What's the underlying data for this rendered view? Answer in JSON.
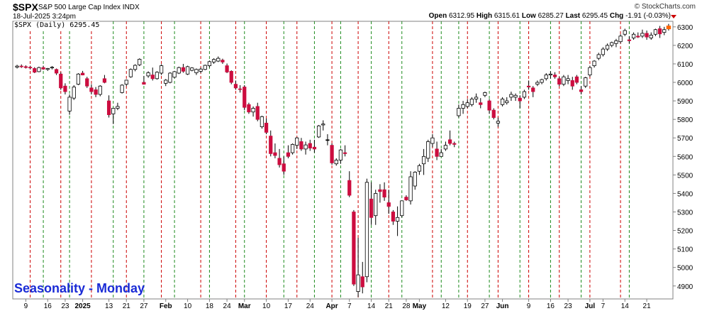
{
  "header": {
    "symbol": "$SPX",
    "description": "S&P 500 Large Cap Index  INDX",
    "date": "18-Jul-2025 3:24pm",
    "brand": "© StockCharts.com",
    "open_label": "Open",
    "open": "6312.95",
    "high_label": "High",
    "high": "6315.61",
    "low_label": "Low",
    "low": "6285.27",
    "last_label": "Last",
    "last": "6295.45",
    "chg_label": "Chg",
    "chg": "-1.91 (-0.03%)"
  },
  "series_label": "$SPX (Daily) 6295.45",
  "watermark": "Seasonality - Monday",
  "colors": {
    "up": "#ffffff",
    "down": "#cc0d3f",
    "flat": "#000000",
    "red_line": "#cc0000",
    "green_line": "#1c8a1c",
    "last_marker": "#ff6600"
  },
  "chart_data": {
    "type": "candlestick",
    "ylim": [
      4830,
      6330
    ],
    "y_ticks": [
      4900,
      5000,
      5100,
      5200,
      5300,
      5400,
      5500,
      5600,
      5700,
      5800,
      5900,
      6000,
      6100,
      6200,
      6300
    ],
    "x_ticks": [
      {
        "i": 2,
        "label": "9"
      },
      {
        "i": 7,
        "label": "16"
      },
      {
        "i": 11,
        "label": "23"
      },
      {
        "i": 15,
        "label": "2025",
        "bold": true
      },
      {
        "i": 21,
        "label": "13"
      },
      {
        "i": 25,
        "label": "21"
      },
      {
        "i": 29,
        "label": "27"
      },
      {
        "i": 34,
        "label": "Feb",
        "bold": true
      },
      {
        "i": 39,
        "label": "10"
      },
      {
        "i": 44,
        "label": "18"
      },
      {
        "i": 48,
        "label": "24"
      },
      {
        "i": 52,
        "label": "Mar",
        "bold": true
      },
      {
        "i": 57,
        "label": "10"
      },
      {
        "i": 62,
        "label": "17"
      },
      {
        "i": 67,
        "label": "24"
      },
      {
        "i": 72,
        "label": "Apr",
        "bold": true
      },
      {
        "i": 76,
        "label": "7"
      },
      {
        "i": 81,
        "label": "14"
      },
      {
        "i": 85,
        "label": "21"
      },
      {
        "i": 89,
        "label": "28"
      },
      {
        "i": 92,
        "label": "May",
        "bold": true
      },
      {
        "i": 98,
        "label": "12"
      },
      {
        "i": 103,
        "label": "19"
      },
      {
        "i": 107,
        "label": "27"
      },
      {
        "i": 111,
        "label": "Jun",
        "bold": true
      },
      {
        "i": 117,
        "label": "9"
      },
      {
        "i": 122,
        "label": "16"
      },
      {
        "i": 126,
        "label": "23"
      },
      {
        "i": 131,
        "label": "Jul",
        "bold": true
      },
      {
        "i": 134,
        "label": "7"
      },
      {
        "i": 139,
        "label": "14"
      },
      {
        "i": 144,
        "label": "21"
      }
    ],
    "red_lines": [
      3,
      10,
      17,
      25,
      33,
      42,
      50,
      57,
      64,
      72,
      78,
      85,
      95,
      103,
      110,
      117,
      124,
      131,
      138
    ],
    "green_lines": [
      6,
      12,
      22,
      29,
      36,
      44,
      52,
      61,
      68,
      74,
      81,
      88,
      97,
      101,
      108,
      115,
      122,
      129,
      140
    ],
    "candles": [
      [
        6082,
        6095,
        6075,
        6088
      ],
      [
        6088,
        6097,
        6078,
        6085
      ],
      [
        6085,
        6092,
        6075,
        6080
      ],
      [
        6082,
        6090,
        6070,
        6078
      ],
      [
        6075,
        6082,
        6050,
        6055
      ],
      [
        6058,
        6085,
        6055,
        6080
      ],
      [
        6080,
        6090,
        6068,
        6072
      ],
      [
        6070,
        6078,
        6062,
        6075
      ],
      [
        6078,
        6088,
        6070,
        6082
      ],
      [
        6070,
        6075,
        6040,
        6050
      ],
      [
        6045,
        6055,
        5960,
        5970
      ],
      [
        5980,
        5995,
        5935,
        5950
      ],
      [
        5845,
        5935,
        5825,
        5920
      ],
      [
        5915,
        5985,
        5905,
        5975
      ],
      [
        5990,
        6050,
        5985,
        6045
      ],
      [
        6050,
        6062,
        6038,
        6040
      ],
      [
        6020,
        6030,
        5970,
        5980
      ],
      [
        5970,
        5990,
        5935,
        5950
      ],
      [
        5960,
        5975,
        5920,
        5935
      ],
      [
        5935,
        5985,
        5925,
        5980
      ],
      [
        6020,
        6040,
        5995,
        6000
      ],
      [
        5900,
        5930,
        5810,
        5825
      ],
      [
        5830,
        5862,
        5775,
        5860
      ],
      [
        5860,
        5890,
        5850,
        5870
      ],
      [
        5945,
        5990,
        5940,
        5985
      ],
      [
        5990,
        6015,
        5980,
        6012
      ],
      [
        6030,
        6075,
        6025,
        6070
      ],
      [
        6070,
        6098,
        6060,
        6092
      ],
      [
        6095,
        6130,
        6088,
        6125
      ],
      [
        6000,
        6035,
        5988,
        5990
      ],
      [
        6035,
        6060,
        6025,
        6052
      ],
      [
        6040,
        6080,
        6010,
        6020
      ],
      [
        6020,
        6060,
        6015,
        6055
      ],
      [
        6050,
        6098,
        6040,
        6090
      ],
      [
        5995,
        6018,
        5980,
        6012
      ],
      [
        6000,
        6055,
        5995,
        6050
      ],
      [
        6028,
        6062,
        6022,
        6058
      ],
      [
        6050,
        6085,
        6045,
        6080
      ],
      [
        6080,
        6100,
        6052,
        6060
      ],
      [
        6045,
        6090,
        6040,
        6085
      ],
      [
        6065,
        6082,
        6060,
        6078
      ],
      [
        6052,
        6075,
        6040,
        6070
      ],
      [
        6060,
        6080,
        6050,
        6072
      ],
      [
        6070,
        6096,
        6066,
        6092
      ],
      [
        6090,
        6118,
        6080,
        6112
      ],
      [
        6110,
        6130,
        6100,
        6124
      ],
      [
        6115,
        6140,
        6110,
        6130
      ],
      [
        6120,
        6128,
        6100,
        6110
      ],
      [
        6090,
        6102,
        6050,
        6056
      ],
      [
        6060,
        6065,
        5990,
        6000
      ],
      [
        5990,
        6010,
        5960,
        5970
      ],
      [
        5965,
        5985,
        5945,
        5962
      ],
      [
        5975,
        5985,
        5850,
        5865
      ],
      [
        5880,
        5890,
        5830,
        5840
      ],
      [
        5840,
        5870,
        5815,
        5860
      ],
      [
        5870,
        5890,
        5790,
        5800
      ],
      [
        5760,
        5820,
        5750,
        5815
      ],
      [
        5780,
        5805,
        5720,
        5730
      ],
      [
        5710,
        5740,
        5600,
        5615
      ],
      [
        5620,
        5670,
        5590,
        5605
      ],
      [
        5590,
        5640,
        5540,
        5555
      ],
      [
        5560,
        5600,
        5500,
        5520
      ],
      [
        5620,
        5660,
        5590,
        5600
      ],
      [
        5620,
        5670,
        5610,
        5665
      ],
      [
        5660,
        5705,
        5640,
        5700
      ],
      [
        5680,
        5700,
        5630,
        5640
      ],
      [
        5640,
        5680,
        5610,
        5662
      ],
      [
        5670,
        5690,
        5630,
        5645
      ],
      [
        5650,
        5690,
        5620,
        5640
      ],
      [
        5705,
        5770,
        5700,
        5765
      ],
      [
        5770,
        5795,
        5740,
        5775
      ],
      [
        5690,
        5720,
        5660,
        5690
      ],
      [
        5660,
        5670,
        5555,
        5565
      ],
      [
        5560,
        5590,
        5550,
        5580
      ],
      [
        5580,
        5640,
        5560,
        5635
      ],
      [
        5620,
        5660,
        5600,
        5615
      ],
      [
        5470,
        5520,
        5380,
        5390
      ],
      [
        5300,
        5310,
        4900,
        4910
      ],
      [
        4870,
        5160,
        4840,
        4960
      ],
      [
        4950,
        5030,
        4860,
        4895
      ],
      [
        4950,
        5480,
        4920,
        5460
      ],
      [
        5370,
        5460,
        5230,
        5270
      ],
      [
        5280,
        5420,
        5230,
        5400
      ],
      [
        5420,
        5450,
        5350,
        5410
      ],
      [
        5420,
        5460,
        5360,
        5380
      ],
      [
        5350,
        5420,
        5290,
        5330
      ],
      [
        5300,
        5310,
        5230,
        5250
      ],
      [
        5250,
        5330,
        5170,
        5270
      ],
      [
        5280,
        5360,
        5270,
        5360
      ],
      [
        5380,
        5390,
        5360,
        5365
      ],
      [
        5360,
        5520,
        5340,
        5490
      ],
      [
        5440,
        5520,
        5420,
        5515
      ],
      [
        5520,
        5560,
        5500,
        5550
      ],
      [
        5560,
        5640,
        5500,
        5600
      ],
      [
        5590,
        5690,
        5570,
        5680
      ],
      [
        5670,
        5720,
        5650,
        5700
      ],
      [
        5640,
        5680,
        5580,
        5600
      ],
      [
        5600,
        5640,
        5600,
        5620
      ],
      [
        5640,
        5680,
        5630,
        5660
      ],
      [
        5690,
        5740,
        5660,
        5670
      ],
      [
        5670,
        5680,
        5650,
        5665
      ],
      [
        5820,
        5880,
        5810,
        5860
      ],
      [
        5860,
        5900,
        5830,
        5880
      ],
      [
        5870,
        5910,
        5860,
        5890
      ],
      [
        5880,
        5920,
        5870,
        5910
      ],
      [
        5910,
        5940,
        5890,
        5920
      ],
      [
        5890,
        5915,
        5860,
        5880
      ],
      [
        5930,
        5950,
        5920,
        5945
      ],
      [
        5900,
        5910,
        5830,
        5850
      ],
      [
        5850,
        5860,
        5800,
        5810
      ],
      [
        5780,
        5810,
        5760,
        5790
      ],
      [
        5880,
        5920,
        5870,
        5910
      ],
      [
        5890,
        5920,
        5880,
        5900
      ],
      [
        5920,
        5950,
        5900,
        5935
      ],
      [
        5920,
        5940,
        5900,
        5930
      ],
      [
        5915,
        5930,
        5860,
        5900
      ],
      [
        5920,
        5960,
        5910,
        5950
      ],
      [
        5980,
        6010,
        5960,
        5975
      ],
      [
        5970,
        5980,
        5920,
        5950
      ],
      [
        5990,
        6010,
        5980,
        6000
      ],
      [
        6000,
        6020,
        5990,
        6015
      ],
      [
        6020,
        6050,
        6010,
        6040
      ],
      [
        6040,
        6060,
        6020,
        6045
      ],
      [
        6040,
        6055,
        6020,
        6030
      ],
      [
        6020,
        6030,
        5980,
        5990
      ],
      [
        5990,
        6040,
        5980,
        6030
      ],
      [
        6010,
        6040,
        5990,
        6020
      ],
      [
        6010,
        6030,
        5960,
        5980
      ],
      [
        6030,
        6040,
        5990,
        6000
      ],
      [
        5960,
        5980,
        5935,
        5950
      ],
      [
        5980,
        6030,
        5970,
        6025
      ],
      [
        6040,
        6090,
        6030,
        6080
      ],
      [
        6090,
        6120,
        6080,
        6115
      ],
      [
        6130,
        6160,
        6120,
        6150
      ],
      [
        6150,
        6190,
        6140,
        6180
      ],
      [
        6180,
        6210,
        6170,
        6200
      ],
      [
        6200,
        6220,
        6190,
        6215
      ],
      [
        6210,
        6235,
        6190,
        6225
      ],
      [
        6220,
        6260,
        6210,
        6250
      ],
      [
        6260,
        6290,
        6250,
        6280
      ],
      [
        6230,
        6250,
        6210,
        6225
      ],
      [
        6240,
        6270,
        6230,
        6260
      ],
      [
        6250,
        6270,
        6240,
        6245
      ],
      [
        6250,
        6285,
        6240,
        6265
      ],
      [
        6265,
        6280,
        6230,
        6245
      ],
      [
        6240,
        6270,
        6230,
        6255
      ],
      [
        6260,
        6290,
        6250,
        6285
      ],
      [
        6290,
        6305,
        6240,
        6262
      ],
      [
        6270,
        6300,
        6255,
        6285
      ],
      [
        6290,
        6316,
        6280,
        6295
      ]
    ]
  }
}
